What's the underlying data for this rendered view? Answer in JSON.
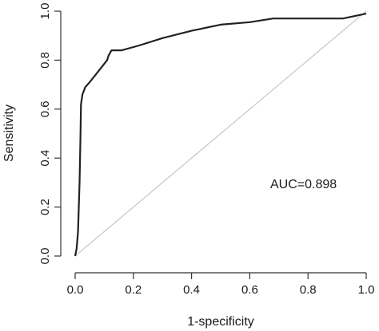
{
  "chart_data": {
    "type": "line",
    "title": "",
    "xlabel": "1-specificity",
    "ylabel": "Sensitivity",
    "xlim": [
      0,
      1
    ],
    "ylim": [
      0,
      1
    ],
    "x_ticks": [
      "0.0",
      "0.2",
      "0.4",
      "0.6",
      "0.8",
      "1.0"
    ],
    "y_ticks": [
      "0.0",
      "0.2",
      "0.4",
      "0.6",
      "0.8",
      "1.0"
    ],
    "grid": false,
    "annotation": "AUC=0.898",
    "reference_line": {
      "x": [
        0,
        1
      ],
      "y": [
        0,
        1
      ]
    },
    "series": [
      {
        "x": [
          0.0,
          0.005,
          0.01,
          0.015,
          0.018,
          0.02,
          0.025,
          0.035,
          0.05,
          0.07,
          0.09,
          0.11,
          0.115,
          0.125,
          0.16,
          0.22,
          0.3,
          0.4,
          0.5,
          0.6,
          0.68,
          0.8,
          0.92,
          1.0
        ],
        "y": [
          0.0,
          0.03,
          0.1,
          0.3,
          0.48,
          0.62,
          0.66,
          0.69,
          0.71,
          0.74,
          0.77,
          0.8,
          0.82,
          0.84,
          0.84,
          0.86,
          0.89,
          0.92,
          0.945,
          0.955,
          0.97,
          0.97,
          0.97,
          0.99
        ]
      }
    ]
  }
}
